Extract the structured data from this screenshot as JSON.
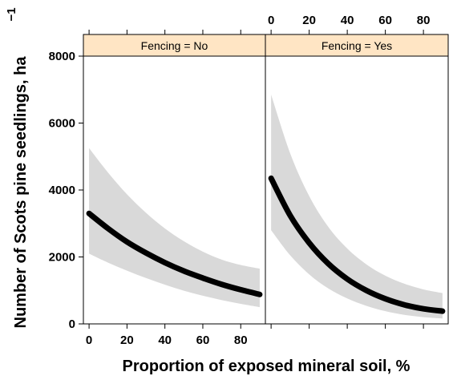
{
  "chart_data": {
    "type": "line",
    "xlabel": "Proportion of exposed mineral soil, %",
    "ylabel": "Number of Scots pine seedlings, ha",
    "ylabel_superscript": "−1",
    "xlim": [
      -3,
      93
    ],
    "ylim": [
      0,
      8000
    ],
    "xticks": [
      0,
      20,
      40,
      60,
      80
    ],
    "yticks": [
      0,
      2000,
      4000,
      6000,
      8000
    ],
    "strip_color": "#ffe5c4",
    "ribbon_color": "#d9d9d9",
    "line_color": "#000000",
    "panels": [
      {
        "strip": "Fencing = No",
        "x": [
          0,
          10,
          20,
          30,
          40,
          50,
          60,
          70,
          80,
          90
        ],
        "fit": [
          3300,
          2850,
          2450,
          2120,
          1830,
          1580,
          1370,
          1180,
          1020,
          880
        ],
        "lower": [
          2100,
          1830,
          1590,
          1370,
          1170,
          990,
          840,
          710,
          600,
          500
        ],
        "upper": [
          5250,
          4520,
          3870,
          3320,
          2850,
          2470,
          2160,
          1920,
          1760,
          1650
        ]
      },
      {
        "strip": "Fencing = Yes",
        "x": [
          0,
          10,
          20,
          30,
          40,
          50,
          60,
          70,
          80,
          90
        ],
        "fit": [
          4350,
          3240,
          2420,
          1800,
          1340,
          1000,
          750,
          570,
          450,
          380
        ],
        "lower": [
          2800,
          2050,
          1480,
          1060,
          760,
          540,
          380,
          270,
          200,
          160
        ],
        "upper": [
          6850,
          5100,
          3820,
          2900,
          2250,
          1780,
          1440,
          1200,
          1030,
          920
        ]
      }
    ]
  }
}
